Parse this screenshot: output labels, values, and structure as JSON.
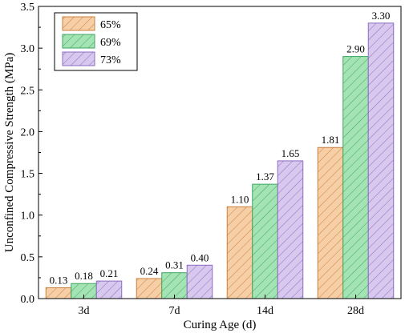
{
  "chart_data": {
    "type": "bar",
    "xlabel": "Curing Age (d)",
    "ylabel": "Unconfined Compressive Strength (MPa)",
    "categories": [
      "3d",
      "7d",
      "14d",
      "28d"
    ],
    "ylim": [
      0,
      3.5
    ],
    "yticks": [
      "0.0",
      "0.5",
      "1.0",
      "1.5",
      "2.0",
      "2.5",
      "3.0",
      "3.5"
    ],
    "legend_position": "top-left",
    "series": [
      {
        "name": "65%",
        "values": [
          0.13,
          0.24,
          1.1,
          1.81
        ],
        "labels": [
          "0.13",
          "0.24",
          "1.10",
          "1.81"
        ],
        "color": "#F7CFA7",
        "stroke": "#C8803F"
      },
      {
        "name": "69%",
        "values": [
          0.18,
          0.31,
          1.37,
          2.9
        ],
        "labels": [
          "0.18",
          "0.31",
          "1.37",
          "2.90"
        ],
        "color": "#A4E4B4",
        "stroke": "#3FA65F"
      },
      {
        "name": "73%",
        "values": [
          0.21,
          0.4,
          1.65,
          3.3
        ],
        "labels": [
          "0.21",
          "0.40",
          "1.65",
          "3.30"
        ],
        "color": "#D8C8EE",
        "stroke": "#8C6CC2"
      }
    ],
    "pattern": "diagonal-hatch"
  }
}
